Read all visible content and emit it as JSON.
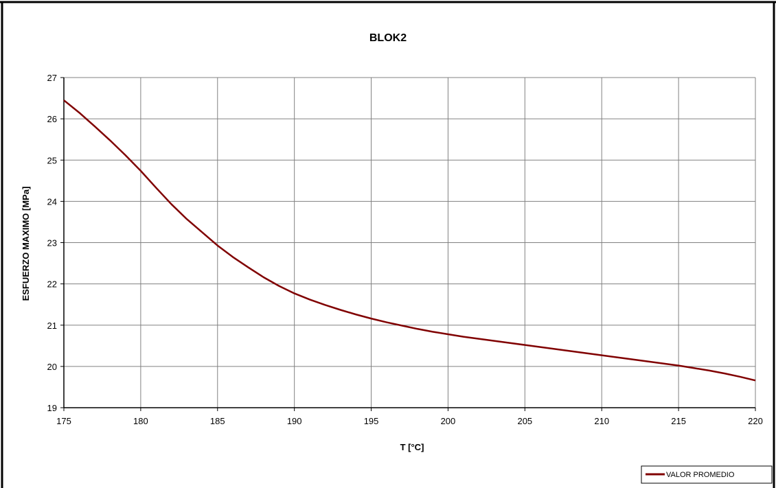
{
  "chart_data": {
    "type": "line",
    "title": "BLOK2",
    "xlabel": "T [°C]",
    "ylabel": "ESFUERZO MAXIMO [MPa]",
    "xlim": [
      175,
      220
    ],
    "ylim": [
      19,
      27
    ],
    "x_ticks": [
      175,
      180,
      185,
      190,
      195,
      200,
      205,
      210,
      215,
      220
    ],
    "y_ticks": [
      19,
      20,
      21,
      22,
      23,
      24,
      25,
      26,
      27
    ],
    "x_tick_labels": [
      "175",
      "180",
      "185",
      "190",
      "195",
      "200",
      "205",
      "210",
      "215",
      "220"
    ],
    "y_tick_labels": [
      "19",
      "20",
      "21",
      "22",
      "23",
      "24",
      "25",
      "26",
      "27"
    ],
    "grid": true,
    "legend_position": "bottom-right",
    "series": [
      {
        "name": "VALOR PROMEDIO",
        "color": "#800000",
        "x": [
          175,
          176,
          177,
          178,
          179,
          180,
          181,
          182,
          183,
          184,
          185,
          186,
          187,
          188,
          189,
          190,
          191,
          192,
          193,
          194,
          195,
          196,
          197,
          198,
          199,
          200,
          201,
          202,
          203,
          204,
          205,
          206,
          207,
          208,
          209,
          210,
          211,
          212,
          213,
          214,
          215,
          216,
          217,
          218,
          219,
          220
        ],
        "y": [
          26.45,
          26.15,
          25.82,
          25.48,
          25.12,
          24.74,
          24.33,
          23.93,
          23.57,
          23.25,
          22.93,
          22.65,
          22.4,
          22.16,
          21.95,
          21.77,
          21.62,
          21.49,
          21.37,
          21.26,
          21.16,
          21.07,
          20.99,
          20.91,
          20.84,
          20.78,
          20.72,
          20.67,
          20.62,
          20.57,
          20.52,
          20.47,
          20.42,
          20.37,
          20.32,
          20.27,
          20.22,
          20.17,
          20.12,
          20.07,
          20.02,
          19.96,
          19.9,
          19.83,
          19.75,
          19.66
        ]
      }
    ]
  }
}
